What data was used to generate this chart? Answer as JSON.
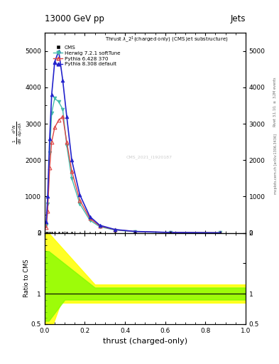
{
  "title_top": "13000 GeV pp",
  "title_right": "Jets",
  "plot_title": "Thrust $\\lambda$_2$^1$(charged only) (CMS jet substructure)",
  "ylabel_main": "$\\frac{1}{\\mathrm{d}N}$ $\\frac{\\mathrm{d}^2N}{\\mathrm{d}p_T\\,\\mathrm{d}\\lambda}$",
  "ylabel_ratio": "Ratio to CMS",
  "xlabel": "thrust (charged-only)",
  "right_label_top": "Rivet 3.1.10, $\\geq$ 3.2M events",
  "right_label_bot": "mcplots.cern.ch [arXiv:1306.3436]",
  "watermark": "CMS_2021_I1920187",
  "herwig_x": [
    0.008,
    0.015,
    0.025,
    0.035,
    0.05,
    0.07,
    0.09,
    0.11,
    0.135,
    0.175,
    0.225,
    0.275,
    0.35,
    0.45,
    0.625,
    0.875
  ],
  "herwig_y": [
    200,
    800,
    2200,
    3300,
    3700,
    3600,
    3400,
    2400,
    1500,
    800,
    350,
    170,
    80,
    35,
    12,
    4
  ],
  "pythia6_x": [
    0.008,
    0.015,
    0.025,
    0.035,
    0.05,
    0.07,
    0.09,
    0.11,
    0.135,
    0.175,
    0.225,
    0.275,
    0.35,
    0.45,
    0.625,
    0.875
  ],
  "pythia6_y": [
    150,
    600,
    1800,
    2500,
    2900,
    3100,
    3200,
    2500,
    1700,
    900,
    400,
    190,
    90,
    40,
    13,
    4
  ],
  "pythia8_x": [
    0.008,
    0.015,
    0.025,
    0.035,
    0.05,
    0.07,
    0.09,
    0.11,
    0.135,
    0.175,
    0.225,
    0.275,
    0.35,
    0.45,
    0.625,
    0.875
  ],
  "pythia8_y": [
    300,
    1000,
    2600,
    3800,
    4700,
    5000,
    4200,
    3200,
    2000,
    1050,
    450,
    210,
    95,
    42,
    14,
    4
  ],
  "cms_x": [
    0.008,
    0.015,
    0.025,
    0.035,
    0.05,
    0.07,
    0.09,
    0.11,
    0.135,
    0.175,
    0.225,
    0.275,
    0.35,
    0.45,
    0.625,
    0.875
  ],
  "cms_y": [
    10,
    10,
    10,
    10,
    10,
    10,
    10,
    10,
    10,
    10,
    10,
    10,
    10,
    10,
    10,
    10
  ],
  "ylim_main": [
    0,
    5500
  ],
  "yticks_main": [
    0,
    1000,
    2000,
    3000,
    4000,
    5000
  ],
  "xlim": [
    0.0,
    1.0
  ],
  "ylim_ratio": [
    0.5,
    2.0
  ],
  "yticks_ratio": [
    0.5,
    1.0,
    1.5,
    2.0
  ],
  "color_herwig": "#44bbaa",
  "color_pythia6": "#dd4444",
  "color_pythia8": "#2222cc",
  "color_cms": "#111111",
  "bg_color": "#f0f0f0"
}
